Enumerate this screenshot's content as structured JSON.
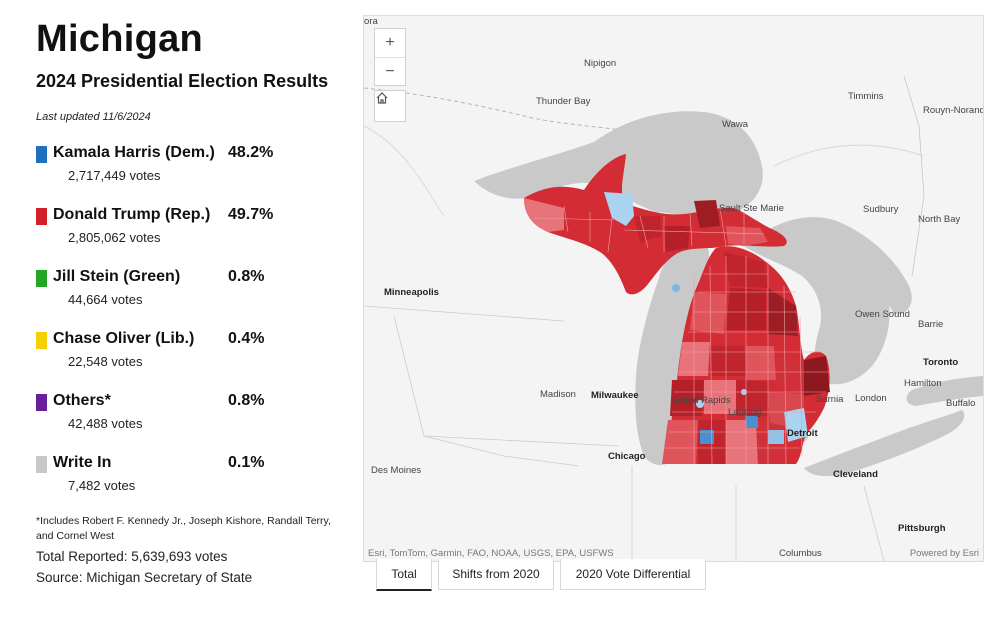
{
  "header": {
    "title": "Michigan",
    "subtitle": "2024 Presidential Election Results",
    "updated": "Last updated 11/6/2024"
  },
  "candidates": [
    {
      "name": "Kamala Harris (Dem.)",
      "pct": "48.2%",
      "votes": "2,717,449 votes",
      "color": "#1f6fbf"
    },
    {
      "name": "Donald Trump (Rep.)",
      "pct": "49.7%",
      "votes": "2,805,062 votes",
      "color": "#d0202a"
    },
    {
      "name": "Jill Stein (Green)",
      "pct": "0.8%",
      "votes": "44,664 votes",
      "color": "#25a525"
    },
    {
      "name": "Chase Oliver (Lib.)",
      "pct": "0.4%",
      "votes": "22,548 votes",
      "color": "#f5d000"
    },
    {
      "name": "Others*",
      "pct": "0.8%",
      "votes": "42,488 votes",
      "color": "#6a1f9a"
    },
    {
      "name": "Write In",
      "pct": "0.1%",
      "votes": "7,482 votes",
      "color": "#c8c8c8"
    }
  ],
  "footnote": "*Includes Robert F. Kennedy Jr., Joseph Kishore, Randall Terry, and Cornel West",
  "total": "Total Reported: 5,639,693 votes",
  "source": "Source: Michigan Secretary of State",
  "map": {
    "zoom_in": "+",
    "zoom_out": "−",
    "home_icon": "home-icon",
    "attribution": "Esri, TomTom, Garmin, FAO, NOAA, USGS, EPA, USFWS",
    "powered_by": "Powered by Esri",
    "labels": {
      "ora": "ora",
      "nipigon": "Nipigon",
      "thunder_bay": "Thunder Bay",
      "timmins": "Timmins",
      "rouyn": "Rouyn-Noranda",
      "wawa": "Wawa",
      "sault": "Sault Ste Marie",
      "sudbury": "Sudbury",
      "north_bay": "North Bay",
      "minneapolis": "Minneapolis",
      "owen_sound": "Owen Sound",
      "barrie": "Barrie",
      "toronto": "Toronto",
      "madison": "Madison",
      "milwaukee": "Milwaukee",
      "grand_rapids": "Grand Rapids",
      "lansing": "Lansing",
      "sarnia": "Sarnia",
      "london": "London",
      "hamilton": "Hamilton",
      "buffalo": "Buffalo",
      "detroit": "Detroit",
      "chicago": "Chicago",
      "des_moines": "Des Moines",
      "cleveland": "Cleveland",
      "pittsburgh": "Pittsburgh",
      "columbus": "Columbus"
    }
  },
  "tabs": [
    {
      "label": "Total",
      "active": true
    },
    {
      "label": "Shifts from 2020",
      "active": false
    },
    {
      "label": "2020 Vote Differential",
      "active": false
    }
  ]
}
